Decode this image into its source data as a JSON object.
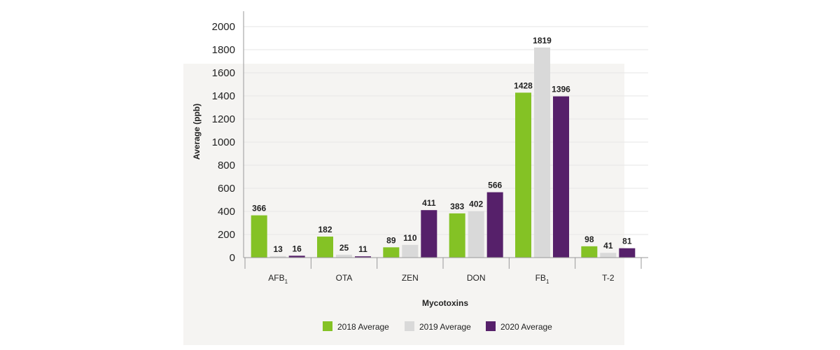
{
  "chart_data": {
    "type": "bar",
    "title": "",
    "xlabel": "Mycotoxins",
    "ylabel": "Average (ppb)",
    "ylim": [
      0,
      2000
    ],
    "yticks": [
      0,
      200,
      400,
      600,
      800,
      1000,
      1200,
      1400,
      1600,
      1800,
      2000
    ],
    "categories": [
      {
        "main": "AFB",
        "sub": "1"
      },
      {
        "main": "OTA",
        "sub": ""
      },
      {
        "main": "ZEN",
        "sub": ""
      },
      {
        "main": "DON",
        "sub": ""
      },
      {
        "main": "FB",
        "sub": "1"
      },
      {
        "main": "T-2",
        "sub": ""
      }
    ],
    "series": [
      {
        "name": "2018 Average",
        "color": "#84c225",
        "values": [
          366,
          182,
          89,
          383,
          1428,
          98
        ]
      },
      {
        "name": "2019 Average",
        "color": "#d9d9d9",
        "values": [
          13,
          25,
          110,
          402,
          1819,
          41
        ]
      },
      {
        "name": "2020 Average",
        "color": "#56206a",
        "values": [
          16,
          11,
          411,
          566,
          1396,
          81
        ]
      }
    ],
    "grid": true,
    "legend": "bottom-center",
    "colors": {
      "panel": "#f5f4f2",
      "gridline": "#e6e6e6",
      "axis": "#999999"
    }
  }
}
